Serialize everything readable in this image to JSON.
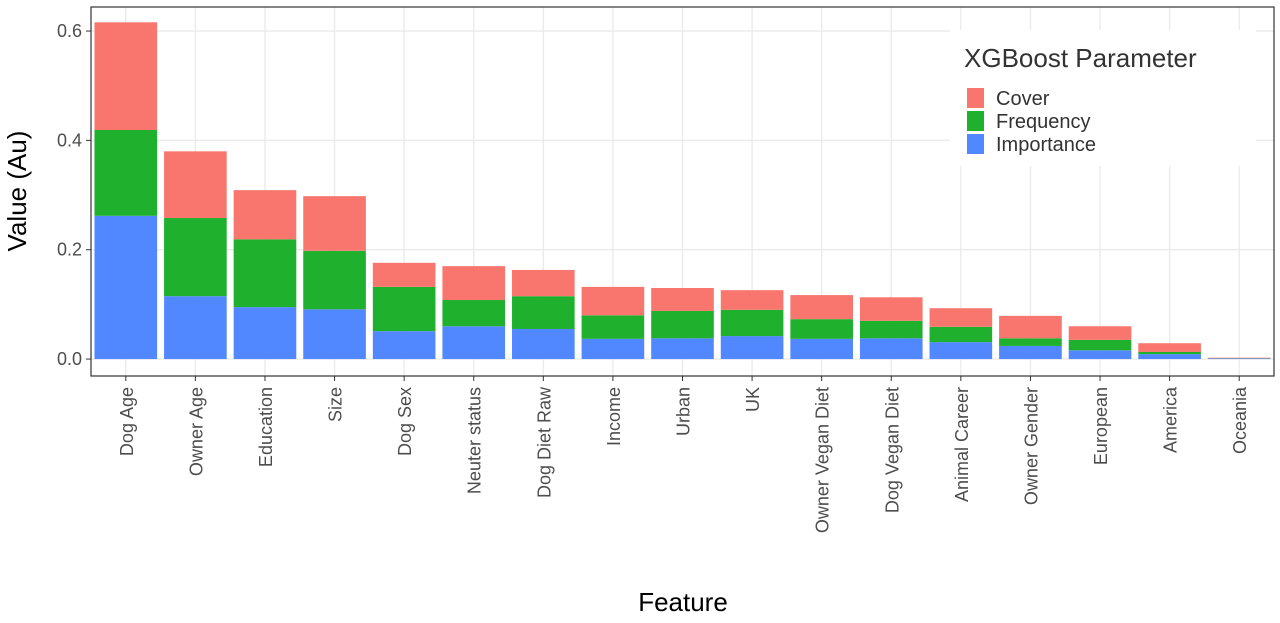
{
  "chart_data": {
    "type": "stacked_bar",
    "x_label": "Feature",
    "y_label": "Value (Au)",
    "categories": [
      "Dog Age",
      "Owner Age",
      "Education",
      "Size",
      "Dog Sex",
      "Neuter status",
      "Dog Diet Raw",
      "Income",
      "Urban",
      "UK",
      "Owner Vegan Diet",
      "Dog Vegan Diet",
      "Animal Career",
      "Owner Gender",
      "European",
      "America",
      "Oceania"
    ],
    "series": [
      {
        "name": "Cover",
        "color": "#f8766d",
        "values": [
          0.197,
          0.122,
          0.09,
          0.1,
          0.044,
          0.062,
          0.048,
          0.052,
          0.042,
          0.036,
          0.044,
          0.043,
          0.034,
          0.041,
          0.025,
          0.016,
          0.001
        ]
      },
      {
        "name": "Frequency",
        "color": "#1fb12e",
        "values": [
          0.157,
          0.143,
          0.124,
          0.107,
          0.081,
          0.048,
          0.06,
          0.043,
          0.05,
          0.048,
          0.036,
          0.032,
          0.028,
          0.014,
          0.019,
          0.004,
          0.0005
        ]
      },
      {
        "name": "Importance",
        "color": "#5288ff",
        "values": [
          0.262,
          0.115,
          0.095,
          0.091,
          0.051,
          0.06,
          0.055,
          0.037,
          0.038,
          0.042,
          0.037,
          0.038,
          0.031,
          0.024,
          0.016,
          0.009,
          0.001
        ]
      }
    ],
    "legend_title": "XGBoost Parameter",
    "legend_position": "top-right",
    "ylim": [
      -0.031,
      0.644
    ],
    "yticks": [
      {
        "value": 0,
        "label": "0.0"
      },
      0.2,
      0.4,
      0.6
    ],
    "grid": true
  }
}
